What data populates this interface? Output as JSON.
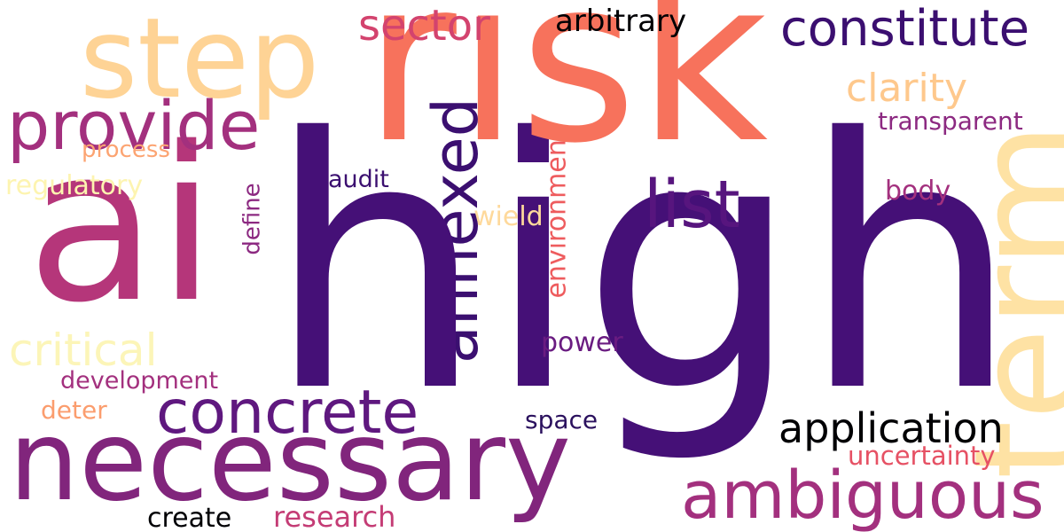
{
  "background": "#ffffff",
  "words": [
    {
      "id": "high",
      "text": "high",
      "color": "#451077"
    },
    {
      "id": "risk",
      "text": "risk",
      "color": "#f7725c"
    },
    {
      "id": "ai",
      "text": "ai",
      "color": "#b5367a"
    },
    {
      "id": "necessary",
      "text": "necessary",
      "color": "#81257c"
    },
    {
      "id": "step",
      "text": "step",
      "color": "#fed395"
    },
    {
      "id": "term",
      "text": "term",
      "color": "#fee2a4"
    },
    {
      "id": "annexed",
      "text": "annexed",
      "color": "#3b0f70"
    },
    {
      "id": "provide",
      "text": "provide",
      "color": "#a3307e"
    },
    {
      "id": "constitute",
      "text": "constitute",
      "color": "#3b0f70"
    },
    {
      "id": "concrete",
      "text": "concrete",
      "color": "#5f187f"
    },
    {
      "id": "ambiguous",
      "text": "ambiguous",
      "color": "#a3307e"
    },
    {
      "id": "list",
      "text": "list",
      "color": "#57157e"
    },
    {
      "id": "application",
      "text": "application",
      "color": "#000004"
    },
    {
      "id": "sector",
      "text": "sector",
      "color": "#d3436e"
    },
    {
      "id": "critical",
      "text": "critical",
      "color": "#fcf5b8"
    },
    {
      "id": "clarity",
      "text": "clarity",
      "color": "#fec88c"
    },
    {
      "id": "environment",
      "text": "environment",
      "color": "#ee5c5e"
    },
    {
      "id": "arbitrary",
      "text": "arbitrary",
      "color": "#000004"
    },
    {
      "id": "transparent",
      "text": "transparent",
      "color": "#8c2981"
    },
    {
      "id": "uncertainty",
      "text": "uncertainty",
      "color": "#e65164"
    },
    {
      "id": "research",
      "text": "research",
      "color": "#c43c75"
    },
    {
      "id": "create",
      "text": "create",
      "color": "#000004"
    },
    {
      "id": "regulatory",
      "text": "regulatory",
      "color": "#fdf4b0"
    },
    {
      "id": "process",
      "text": "process",
      "color": "#fca472"
    },
    {
      "id": "development",
      "text": "development",
      "color": "#a3307e"
    },
    {
      "id": "deter",
      "text": "deter",
      "color": "#fb9d6e"
    },
    {
      "id": "power",
      "text": "power",
      "color": "#6a1c81"
    },
    {
      "id": "wield",
      "text": "wield",
      "color": "#fed99b"
    },
    {
      "id": "body",
      "text": "body",
      "color": "#a3307e"
    },
    {
      "id": "audit",
      "text": "audit",
      "color": "#3b0f70"
    },
    {
      "id": "space",
      "text": "space",
      "color": "#8c2981"
    },
    {
      "id": "define",
      "text": "define",
      "color": "#2b115e"
    }
  ]
}
